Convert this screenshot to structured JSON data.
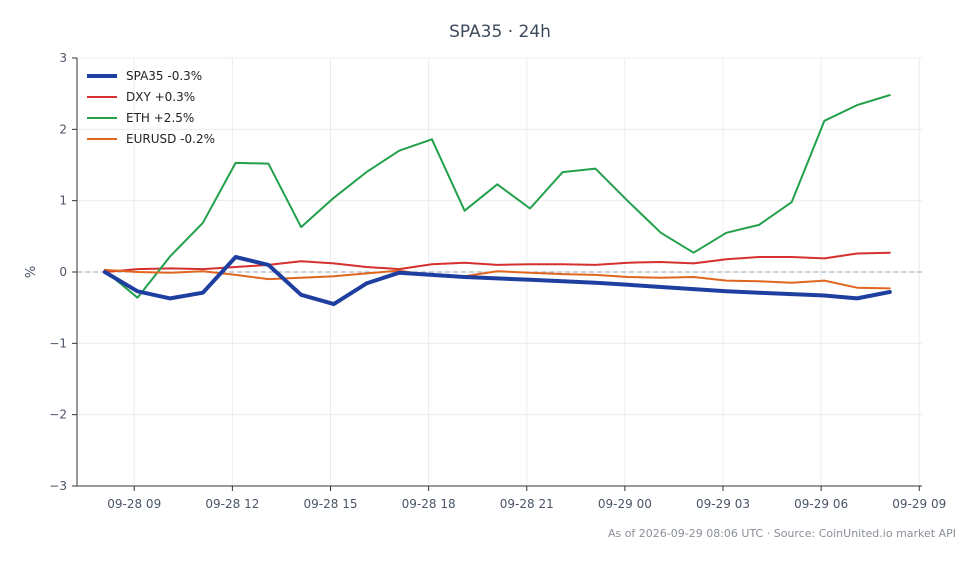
{
  "chart_data": {
    "type": "line",
    "title": "SPA35 · 24h",
    "ylabel": "%",
    "xlabel": "",
    "ylim": [
      -3,
      3
    ],
    "yticks": [
      3,
      2,
      1,
      0,
      -1,
      -2,
      -3
    ],
    "ytick_labels": [
      "3",
      "2",
      "1",
      "0",
      "−1",
      "−2",
      "−3"
    ],
    "xlim": [
      "2026-09-28 07:15",
      "2026-09-29 09:05"
    ],
    "xticks": [
      "2026-09-28 09:00",
      "2026-09-28 12:00",
      "2026-09-28 15:00",
      "2026-09-28 18:00",
      "2026-09-28 21:00",
      "2026-09-29 00:00",
      "2026-09-29 03:00",
      "2026-09-29 06:00",
      "2026-09-29 09:00"
    ],
    "xtick_labels": [
      "09-28 09",
      "09-28 12",
      "09-28 15",
      "09-28 18",
      "09-28 21",
      "09-29 00",
      "09-29 03",
      "09-29 06",
      "09-29 09"
    ],
    "x": [
      "2026-09-28 08:06",
      "2026-09-28 09:06",
      "2026-09-28 10:06",
      "2026-09-28 11:06",
      "2026-09-28 12:06",
      "2026-09-28 13:06",
      "2026-09-28 14:06",
      "2026-09-28 15:06",
      "2026-09-28 16:06",
      "2026-09-28 17:06",
      "2026-09-28 18:06",
      "2026-09-28 19:06",
      "2026-09-28 20:06",
      "2026-09-28 21:06",
      "2026-09-28 22:06",
      "2026-09-28 23:06",
      "2026-09-29 00:06",
      "2026-09-29 01:06",
      "2026-09-29 02:06",
      "2026-09-29 03:06",
      "2026-09-29 04:06",
      "2026-09-29 05:06",
      "2026-09-29 06:06",
      "2026-09-29 07:06",
      "2026-09-29 08:06"
    ],
    "grid": true,
    "reference_line": 0,
    "legend_position": "top-left",
    "series": [
      {
        "name": "SPA35 -0.3%",
        "color": "#1f3fa0",
        "width": "thick",
        "values": [
          0.0,
          -0.27,
          -0.37,
          -0.29,
          0.21,
          0.1,
          -0.32,
          -0.45,
          -0.16,
          -0.01,
          -0.04,
          -0.07,
          -0.09,
          -0.11,
          -0.13,
          -0.15,
          -0.18,
          -0.21,
          -0.24,
          -0.27,
          -0.29,
          -0.31,
          -0.33,
          -0.37,
          -0.28
        ]
      },
      {
        "name": "DXY +0.3%",
        "color": "#d62f2f",
        "width": "normal",
        "values": [
          0.0,
          0.04,
          0.05,
          0.04,
          0.07,
          0.1,
          0.15,
          0.12,
          0.07,
          0.04,
          0.11,
          0.13,
          0.1,
          0.11,
          0.11,
          0.1,
          0.13,
          0.14,
          0.12,
          0.18,
          0.21,
          0.21,
          0.19,
          0.26,
          0.27
        ]
      },
      {
        "name": "ETH +2.5%",
        "color": "#23a04a",
        "width": "normal",
        "values": [
          0.02,
          -0.36,
          0.22,
          0.69,
          1.53,
          1.52,
          0.63,
          1.04,
          1.4,
          1.7,
          1.86,
          0.86,
          1.23,
          0.89,
          1.4,
          1.45,
          0.99,
          0.55,
          0.27,
          0.55,
          0.66,
          0.98,
          2.12,
          2.34,
          2.48
        ]
      },
      {
        "name": "EURUSD -0.2%",
        "color": "#e0661f",
        "width": "normal",
        "values": [
          0.03,
          0.0,
          -0.01,
          0.01,
          -0.04,
          -0.1,
          -0.08,
          -0.06,
          -0.02,
          0.02,
          -0.05,
          -0.06,
          0.01,
          -0.01,
          -0.03,
          -0.04,
          -0.07,
          -0.08,
          -0.07,
          -0.12,
          -0.13,
          -0.15,
          -0.12,
          -0.22,
          -0.23
        ]
      }
    ]
  },
  "footer": "As of 2026-09-29 08:06 UTC · Source: CoinUnited.io market API"
}
